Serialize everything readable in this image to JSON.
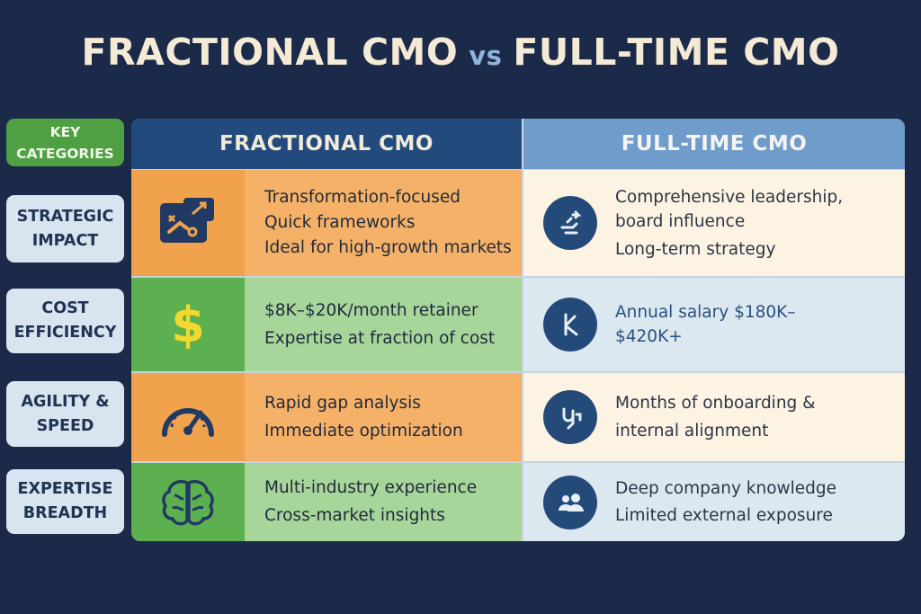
{
  "title": {
    "left": "FRACTIONAL CMO",
    "vs": "vs",
    "right": "FULL-TIME CMO"
  },
  "categories_header": {
    "line1": "KEY",
    "line2": "CATEGORIES"
  },
  "columns": {
    "fractional": "FRACTIONAL CMO",
    "full_time": "FULL-TIME CMO"
  },
  "colors": {
    "background": "#1c2a49",
    "fractional_header": "#234a7d",
    "full_time_header": "#6f9ccb",
    "orange_row": "#f4ad5d",
    "green_row": "#a8d59a",
    "category_badge": "#d8e4ef",
    "key_badge": "#4f9f43"
  },
  "rows": [
    {
      "category": [
        "STRATEGIC",
        "IMPACT"
      ],
      "fractional_icon": "strategy-board-icon",
      "fractional": [
        "Transformation-focused",
        "Quick frameworks",
        "Ideal for high-growth markets"
      ],
      "full_time_icon": "leadership-icon",
      "full_time": [
        "Comprehensive leadership,",
        "board influence",
        "Long-term strategy"
      ]
    },
    {
      "category": [
        "COST",
        "EFFICIENCY"
      ],
      "fractional_icon": "dollar-icon",
      "fractional": [
        "$8K–$20K/month retainer",
        "Expertise at fraction of cost"
      ],
      "full_time_icon": "salary-icon",
      "full_time": [
        "Annual salary $180K–",
        "$420K+"
      ]
    },
    {
      "category": [
        "AGILITY &",
        "SPEED"
      ],
      "fractional_icon": "speedometer-icon",
      "fractional": [
        "Rapid gap analysis",
        "Immediate optimization"
      ],
      "full_time_icon": "onboarding-icon",
      "full_time": [
        "Months of onboarding &",
        "internal alignment"
      ]
    },
    {
      "category": [
        "EXPERTISE",
        "BREADTH"
      ],
      "fractional_icon": "brain-icon",
      "fractional": [
        "Multi-industry experience",
        "Cross-market insights"
      ],
      "full_time_icon": "people-icon",
      "full_time": [
        "Deep company knowledge",
        "Limited external exposure"
      ]
    }
  ]
}
